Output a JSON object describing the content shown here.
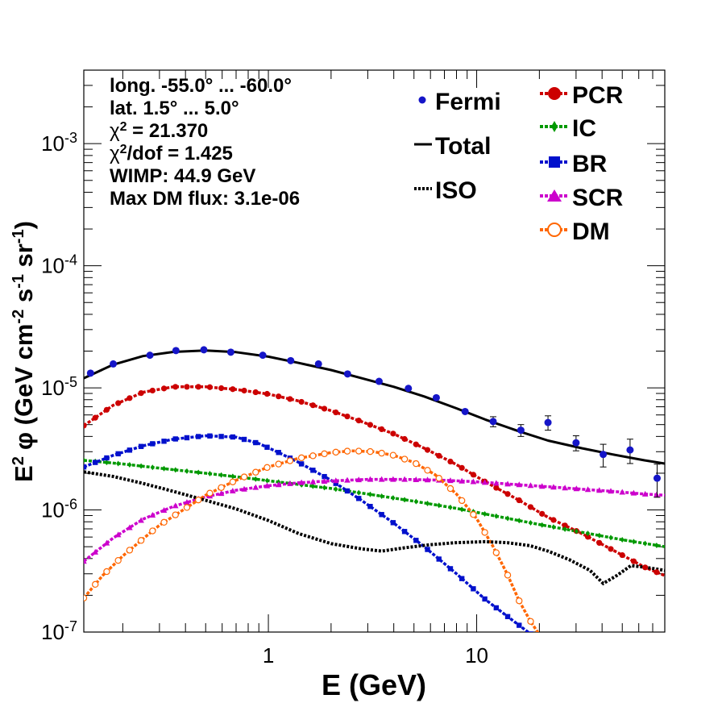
{
  "chart_data": {
    "type": "line",
    "xscale": "log",
    "yscale": "log",
    "xlim": [
      0.13,
      80
    ],
    "ylim": [
      1e-07,
      0.004
    ],
    "xlabel": "E (GeV)",
    "ylabel": {
      "base": "E",
      "sup1": "2",
      "phi": "φ (GeV cm",
      "sup2": "-2",
      "mid": " s",
      "sup3": "-1",
      "end": " sr",
      "sup4": "-1",
      "close": ")"
    },
    "x_ticks": [
      {
        "v": 1,
        "label": "1"
      },
      {
        "v": 10,
        "label": "10"
      }
    ],
    "y_ticks": [
      {
        "v": 1e-07,
        "base": "10",
        "exp": "-7"
      },
      {
        "v": 1e-06,
        "base": "10",
        "exp": "-6"
      },
      {
        "v": 1e-05,
        "base": "10",
        "exp": "-5"
      },
      {
        "v": 0.0001,
        "base": "10",
        "exp": "-4"
      },
      {
        "v": 0.001,
        "base": "10",
        "exp": "-3"
      }
    ],
    "info": {
      "longitude": "long. -55.0° ... -60.0°",
      "latitude": "lat. 1.5° ... 5.0°",
      "chi2": {
        "symbol": "χ",
        "sup": "2",
        "text": " = 21.370"
      },
      "chi2dof": {
        "symbol": "χ",
        "sup": "2",
        "text": "/dof = 1.425"
      },
      "wimp": "WIMP: 44.9 GeV",
      "max_dm": "Max DM flux: 3.1e-06"
    },
    "legend_left": [
      {
        "name": "Fermi",
        "style": "points",
        "color": "#1515c8"
      },
      {
        "name": "Total",
        "style": "solid",
        "color": "#000000"
      },
      {
        "name": "ISO",
        "style": "dotted",
        "color": "#000000"
      }
    ],
    "legend_right": [
      {
        "name": "PCR",
        "marker": "circle",
        "color": "#cc0000"
      },
      {
        "name": "IC",
        "marker": "diamond",
        "color": "#009900"
      },
      {
        "name": "BR",
        "marker": "square",
        "color": "#0010cc"
      },
      {
        "name": "SCR",
        "marker": "triangle",
        "color": "#cc00cc"
      },
      {
        "name": "DM",
        "marker": "open-circle",
        "color": "#ff6600"
      }
    ],
    "fermi": {
      "color": "#1515c8",
      "points": [
        {
          "x": 0.14,
          "y": 1.32e-05,
          "err": 0
        },
        {
          "x": 0.18,
          "y": 1.57e-05,
          "err": 0
        },
        {
          "x": 0.27,
          "y": 1.85e-05,
          "err": 0
        },
        {
          "x": 0.36,
          "y": 2.02e-05,
          "err": 0
        },
        {
          "x": 0.49,
          "y": 2.05e-05,
          "err": 0
        },
        {
          "x": 0.66,
          "y": 1.96e-05,
          "err": 0
        },
        {
          "x": 0.94,
          "y": 1.85e-05,
          "err": 0
        },
        {
          "x": 1.28,
          "y": 1.67e-05,
          "err": 0
        },
        {
          "x": 1.74,
          "y": 1.57e-05,
          "err": 0
        },
        {
          "x": 2.4,
          "y": 1.3e-05,
          "err": 0
        },
        {
          "x": 3.4,
          "y": 1.13e-05,
          "err": 0
        },
        {
          "x": 4.7,
          "y": 9.9e-06,
          "err": 0
        },
        {
          "x": 6.4,
          "y": 8.3e-06,
          "err": 0
        },
        {
          "x": 8.8,
          "y": 6.4e-06,
          "err": 0
        },
        {
          "x": 12.0,
          "y": 5.3e-06,
          "err": 5e-07
        },
        {
          "x": 16.3,
          "y": 4.5e-06,
          "err": 5e-07
        },
        {
          "x": 22.0,
          "y": 5.2e-06,
          "err": 7e-07
        },
        {
          "x": 30.0,
          "y": 3.55e-06,
          "err": 5e-07
        },
        {
          "x": 40.5,
          "y": 2.85e-06,
          "err": 6e-07
        },
        {
          "x": 54.5,
          "y": 3.1e-06,
          "err": 7e-07
        },
        {
          "x": 73.5,
          "y": 1.82e-06,
          "err": 5.5e-07
        }
      ]
    },
    "series": [
      {
        "name": "Total",
        "color": "#000000",
        "style": "solid",
        "x": [
          0.13,
          0.18,
          0.25,
          0.35,
          0.5,
          0.7,
          1.0,
          1.4,
          2.0,
          2.8,
          4.0,
          5.6,
          8.0,
          11.0,
          16.0,
          22.0,
          32.0,
          45.0,
          64.0,
          80.0
        ],
        "y": [
          1.2e-05,
          1.55e-05,
          1.82e-05,
          1.97e-05,
          2.02e-05,
          1.96e-05,
          1.8e-05,
          1.6e-05,
          1.4e-05,
          1.2e-05,
          1.02e-05,
          8.5e-06,
          6.8e-06,
          5.5e-06,
          4.4e-06,
          3.7e-06,
          3.2e-06,
          2.85e-06,
          2.55e-06,
          2.4e-06
        ]
      },
      {
        "name": "PCR",
        "color": "#cc0000",
        "style": "marker-line",
        "marker": "circle",
        "x": [
          0.13,
          0.18,
          0.25,
          0.35,
          0.5,
          0.7,
          1.0,
          1.4,
          2.0,
          2.8,
          4.0,
          5.6,
          8.0,
          11.0,
          16.0,
          22.0,
          32.0,
          45.0,
          64.0,
          80.0
        ],
        "y": [
          4.9e-06,
          7.2e-06,
          9.2e-06,
          1.02e-05,
          1.02e-05,
          9.7e-06,
          8.9e-06,
          7.8e-06,
          6.5e-06,
          5.3e-06,
          4.2e-06,
          3.2e-06,
          2.35e-06,
          1.7e-06,
          1.2e-06,
          8.7e-07,
          6.4e-07,
          4.7e-07,
          3.4e-07,
          2.9e-07
        ]
      },
      {
        "name": "IC",
        "color": "#009900",
        "style": "marker-line",
        "marker": "diamond",
        "x": [
          0.13,
          0.2,
          0.3,
          0.5,
          0.8,
          1.2,
          2.0,
          3.0,
          5.0,
          8.0,
          12.0,
          20.0,
          30.0,
          50.0,
          80.0
        ],
        "y": [
          2.55e-06,
          2.38e-06,
          2.2e-06,
          2e-06,
          1.82e-06,
          1.67e-06,
          1.5e-06,
          1.35e-06,
          1.18e-06,
          1.03e-06,
          9e-07,
          7.6e-07,
          6.7e-07,
          5.7e-07,
          5e-07
        ]
      },
      {
        "name": "BR",
        "color": "#0010cc",
        "style": "marker-line",
        "marker": "square",
        "x": [
          0.13,
          0.18,
          0.25,
          0.35,
          0.5,
          0.7,
          0.9,
          1.1,
          1.4,
          2.0,
          2.8,
          4.0,
          5.6,
          8.0,
          11.0,
          14.0,
          17.0,
          20.0
        ],
        "y": [
          2.25e-06,
          2.8e-06,
          3.35e-06,
          3.8e-06,
          4.05e-06,
          3.95e-06,
          3.5e-06,
          3e-06,
          2.45e-06,
          1.75e-06,
          1.2e-06,
          7.8e-07,
          5e-07,
          3e-07,
          1.85e-07,
          1.35e-07,
          1.05e-07,
          8.5e-08
        ]
      },
      {
        "name": "SCR",
        "color": "#cc00cc",
        "style": "marker-line",
        "marker": "triangle",
        "x": [
          0.13,
          0.18,
          0.25,
          0.35,
          0.5,
          0.7,
          1.0,
          1.4,
          2.0,
          3.0,
          4.5,
          7.0,
          10.0,
          15.0,
          22.0,
          32.0,
          45.0,
          64.0,
          80.0
        ],
        "y": [
          3.8e-07,
          5.9e-07,
          8.4e-07,
          1.07e-06,
          1.28e-06,
          1.45e-06,
          1.58e-06,
          1.67e-06,
          1.73e-06,
          1.78e-06,
          1.78e-06,
          1.75e-06,
          1.7e-06,
          1.62e-06,
          1.55e-06,
          1.48e-06,
          1.42e-06,
          1.35e-06,
          1.32e-06
        ]
      },
      {
        "name": "DM",
        "color": "#ff6600",
        "style": "marker-line",
        "marker": "open-circle",
        "x": [
          0.13,
          0.16,
          0.2,
          0.25,
          0.3,
          0.4,
          0.5,
          0.7,
          1.0,
          1.4,
          2.0,
          2.5,
          3.2,
          4.0,
          5.0,
          6.3,
          8.0,
          10.0,
          12.0,
          14.0,
          16.0,
          18.0,
          20.0
        ],
        "y": [
          1.9e-07,
          2.9e-07,
          4.2e-07,
          5.8e-07,
          7.5e-07,
          1.03e-06,
          1.32e-06,
          1.75e-06,
          2.25e-06,
          2.65e-06,
          2.95e-06,
          3.05e-06,
          3e-06,
          2.8e-06,
          2.45e-06,
          1.95e-06,
          1.35e-06,
          8.5e-07,
          5e-07,
          3e-07,
          1.8e-07,
          1.25e-07,
          9.5e-08
        ]
      },
      {
        "name": "ISO",
        "color": "#000000",
        "style": "dotted",
        "x": [
          0.13,
          0.18,
          0.25,
          0.35,
          0.5,
          0.7,
          1.0,
          1.4,
          2.0,
          2.8,
          3.5,
          4.5,
          6.0,
          8.0,
          11.0,
          14.0,
          18.0,
          22.0,
          28.0,
          35.0,
          40.5,
          47.0,
          55.0,
          64.0,
          80.0
        ],
        "y": [
          2.05e-06,
          1.88e-06,
          1.65e-06,
          1.42e-06,
          1.2e-06,
          1.02e-06,
          8.2e-07,
          6.4e-07,
          5.3e-07,
          4.8e-07,
          4.6e-07,
          4.9e-07,
          5.2e-07,
          5.4e-07,
          5.5e-07,
          5.4e-07,
          5.1e-07,
          4.6e-07,
          3.9e-07,
          3.2e-07,
          2.5e-07,
          2.9e-07,
          3.5e-07,
          3.4e-07,
          3.2e-07
        ]
      }
    ]
  }
}
